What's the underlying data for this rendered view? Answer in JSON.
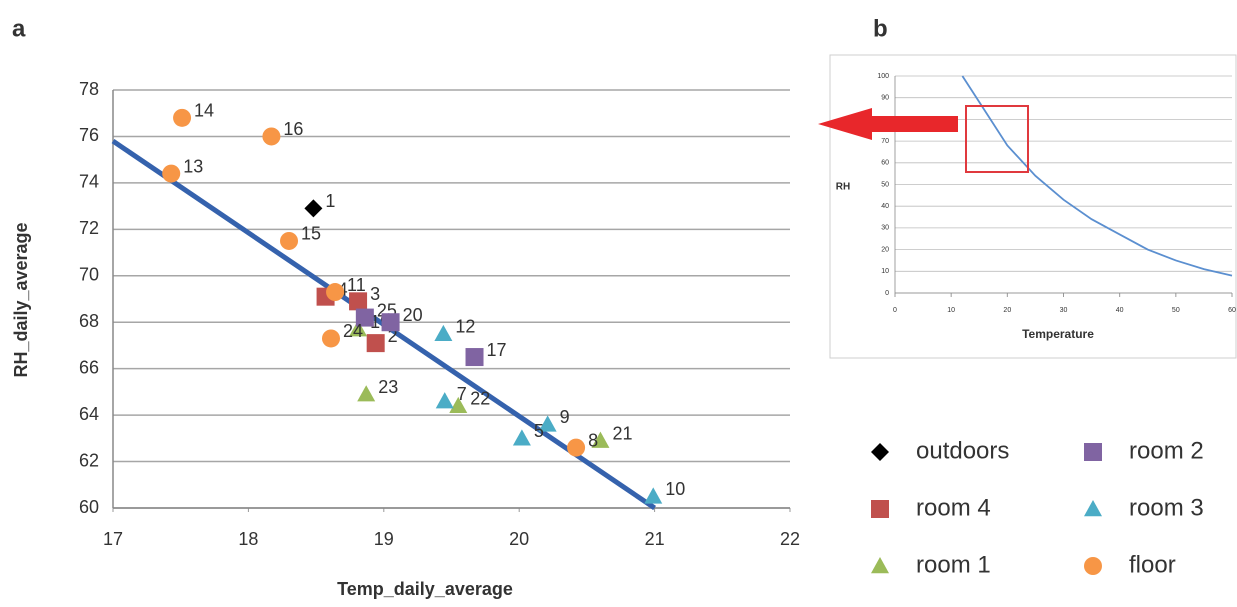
{
  "chart_data": [
    {
      "type": "scatter",
      "panel_label": "a",
      "x_label": "Temp_daily_average",
      "y_label": "RH_daily_average",
      "xlim": [
        17,
        22
      ],
      "xticks": [
        17,
        18,
        19,
        20,
        21,
        22
      ],
      "ylim": [
        60,
        78
      ],
      "yticks": [
        60,
        62,
        64,
        66,
        68,
        70,
        72,
        74,
        76,
        78
      ],
      "grid": true,
      "trendline": {
        "color": "#3562ad",
        "x": [
          17,
          21
        ],
        "values": [
          75.8,
          60
        ]
      },
      "series": [
        {
          "name": "outdoors",
          "color": "#000000",
          "marker": "diamond",
          "x": [
            18.48
          ],
          "values": [
            72.9
          ],
          "labels": [
            "1"
          ]
        },
        {
          "name": "room 4",
          "color": "#c0504d",
          "marker": "square",
          "x": [
            18.57,
            18.81,
            18.94
          ],
          "values": [
            69.1,
            68.9,
            67.1
          ],
          "labels": [
            "4",
            "3",
            "2"
          ]
        },
        {
          "name": "room 1",
          "color": "#9bbb59",
          "marker": "triangle",
          "x": [
            18.81,
            18.87,
            19.55,
            20.6
          ],
          "values": [
            67.7,
            64.9,
            64.4,
            62.9
          ],
          "labels": [
            "19",
            "23",
            "22",
            "21"
          ]
        },
        {
          "name": "room 2",
          "color": "#8064a2",
          "marker": "square",
          "x": [
            18.86,
            19.05,
            19.67
          ],
          "values": [
            68.2,
            68.0,
            66.5
          ],
          "labels": [
            "25",
            "20",
            "17"
          ]
        },
        {
          "name": "room 3",
          "color": "#4bacc6",
          "marker": "triangle",
          "x": [
            19.44,
            19.45,
            20.21,
            20.02,
            20.99
          ],
          "values": [
            67.5,
            64.6,
            63.6,
            63.0,
            60.5
          ],
          "labels": [
            "12",
            "7",
            "9",
            "5",
            "10"
          ]
        },
        {
          "name": "floor",
          "color": "#f79646",
          "marker": "circle",
          "x": [
            17.51,
            18.17,
            17.43,
            18.3,
            18.64,
            18.61,
            20.42
          ],
          "values": [
            76.8,
            76.0,
            74.4,
            71.5,
            69.3,
            67.3,
            62.6
          ],
          "labels": [
            "14",
            "16",
            "13",
            "15",
            "11",
            "24",
            "8"
          ]
        }
      ]
    },
    {
      "type": "line",
      "panel_label": "b",
      "x_label": "Temperature",
      "y_label": "RH",
      "xlim": [
        0,
        60
      ],
      "xticks": [
        0,
        10,
        20,
        30,
        40,
        50,
        60
      ],
      "ylim": [
        0,
        100
      ],
      "yticks": [
        0,
        10,
        20,
        30,
        40,
        50,
        60,
        70,
        80,
        90,
        100
      ],
      "grid": true,
      "series": [
        {
          "color": "#5b8fd0",
          "x": [
            12,
            15,
            20,
            25,
            30,
            35,
            40,
            45,
            50,
            55,
            60
          ],
          "values": [
            100,
            88,
            68,
            54,
            43,
            34,
            27,
            20,
            15,
            11,
            8
          ]
        }
      ]
    }
  ]
}
